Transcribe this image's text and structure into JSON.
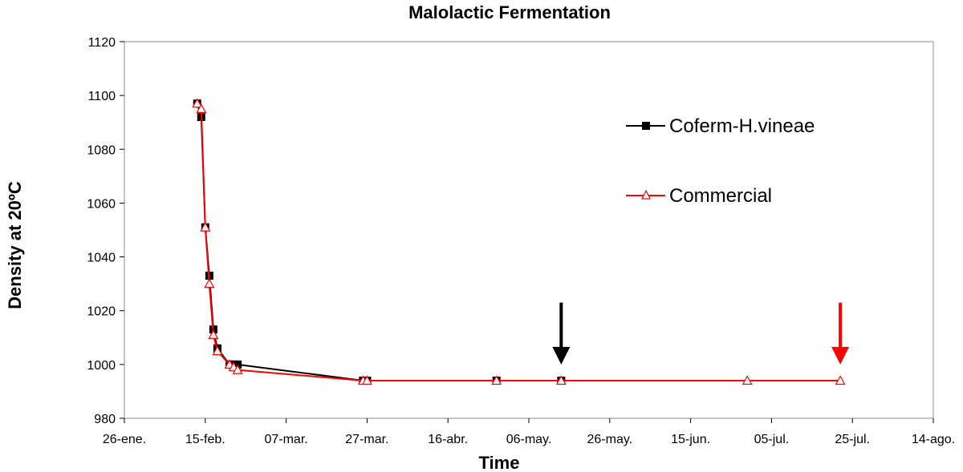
{
  "chart_data": {
    "type": "line",
    "title": "Malolactic Fermentation",
    "xlabel": "Time",
    "ylabel": "Density at 20ºC",
    "ylim": [
      980,
      1120
    ],
    "yticks": [
      980,
      1000,
      1020,
      1040,
      1060,
      1080,
      1100,
      1120
    ],
    "x_range_days": [
      0,
      200
    ],
    "xtick_labels": [
      "26-ene.",
      "15-feb.",
      "07-mar.",
      "27-mar.",
      "16-abr.",
      "06-may.",
      "26-may.",
      "15-jun.",
      "05-jul.",
      "25-jul.",
      "14-ago."
    ],
    "grid": false,
    "legend_position": "right",
    "series": [
      {
        "name": "Coferm-H.vineae",
        "color": "#000000",
        "marker": "filled-square",
        "points": [
          {
            "x": "13-feb.",
            "y": 1097
          },
          {
            "x": "14-feb.",
            "y": 1092
          },
          {
            "x": "15-feb.",
            "y": 1051
          },
          {
            "x": "16-feb.",
            "y": 1033
          },
          {
            "x": "17-feb.",
            "y": 1013
          },
          {
            "x": "18-feb.",
            "y": 1006
          },
          {
            "x": "21-feb.",
            "y": 1000
          },
          {
            "x": "22-feb.",
            "y": 1000
          },
          {
            "x": "23-feb.",
            "y": 1000
          },
          {
            "x": "26-mar.",
            "y": 994
          },
          {
            "x": "27-mar.",
            "y": 994
          },
          {
            "x": "28-abr.",
            "y": 994
          },
          {
            "x": "14-may.",
            "y": 994
          }
        ]
      },
      {
        "name": "Commercial",
        "color": "#ff0000",
        "marker": "open-triangle",
        "points": [
          {
            "x": "13-feb.",
            "y": 1097
          },
          {
            "x": "14-feb.",
            "y": 1095
          },
          {
            "x": "15-feb.",
            "y": 1051
          },
          {
            "x": "16-feb.",
            "y": 1030
          },
          {
            "x": "17-feb.",
            "y": 1011
          },
          {
            "x": "18-feb.",
            "y": 1005
          },
          {
            "x": "21-feb.",
            "y": 1000
          },
          {
            "x": "22-feb.",
            "y": 999
          },
          {
            "x": "23-feb.",
            "y": 998
          },
          {
            "x": "26-mar.",
            "y": 994
          },
          {
            "x": "27-mar.",
            "y": 994
          },
          {
            "x": "28-abr.",
            "y": 994
          },
          {
            "x": "14-may.",
            "y": 994
          },
          {
            "x": "29-jun.",
            "y": 994
          },
          {
            "x": "22-jul.",
            "y": 994
          }
        ]
      }
    ],
    "annotations": [
      {
        "type": "arrow",
        "color": "#000000",
        "x": "14-may.",
        "direction": "down",
        "from_y": 1023,
        "to_y": 1000
      },
      {
        "type": "arrow",
        "color": "#ff0000",
        "x": "22-jul.",
        "direction": "down",
        "from_y": 1023,
        "to_y": 1000
      }
    ]
  }
}
